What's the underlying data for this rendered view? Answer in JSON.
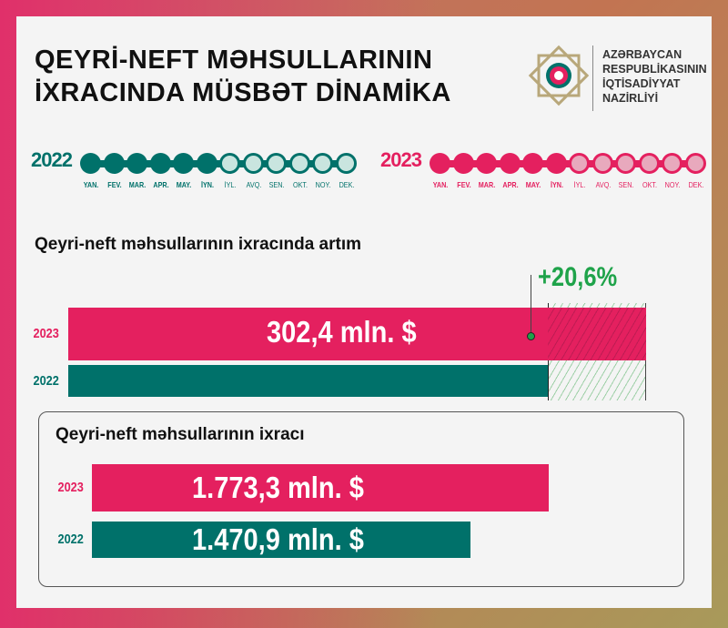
{
  "title": {
    "line1": "QEYRİ-NEFT MƏHSULLARININ",
    "line2": "İXRACINDA MÜSBƏT DİNAMİKA"
  },
  "ministry": {
    "line1": "AZƏRBAYCAN",
    "line2": "RESPUBLİKASININ",
    "line3": "İQTİSADİYYAT",
    "line4": "NAZİRLİYİ",
    "logo": "azerbaijan-emblem"
  },
  "timelines": [
    {
      "year": "2022",
      "color": "#00716a",
      "light": "#c9e5df",
      "active_months": 6,
      "months": [
        "YAN.",
        "FEV.",
        "MAR.",
        "APR.",
        "MAY.",
        "İYN.",
        "İYL.",
        "AVQ.",
        "SEN.",
        "OKT.",
        "NOY.",
        "DEK."
      ]
    },
    {
      "year": "2023",
      "color": "#e4205f",
      "light": "#e8a9bd",
      "active_months": 6,
      "months": [
        "YAN.",
        "FEV.",
        "MAR.",
        "APR.",
        "MAY.",
        "İYN.",
        "İYL.",
        "AVQ.",
        "SEN.",
        "OKT.",
        "NOY.",
        "DEK."
      ]
    }
  ],
  "colors": {
    "y2023": "#e4205f",
    "y2022": "#00716a",
    "growth": "#1fa34a"
  },
  "chart_data": [
    {
      "type": "bar",
      "title": "Qeyri-neft məhsullarının ixracında artım",
      "categories": [
        "2023",
        "2022"
      ],
      "values": [
        1773.3,
        1470.9
      ],
      "difference_label": "302,4 mln. $",
      "growth_label": "+20,6%"
    },
    {
      "type": "bar",
      "title": "Qeyri-neft məhsullarının ixracı",
      "categories": [
        "2023",
        "2022"
      ],
      "values": [
        1773.3,
        1470.9
      ],
      "labels": [
        "1.773,3 mln. $",
        "1.470,9 mln. $"
      ],
      "unit": "mln. $"
    }
  ]
}
